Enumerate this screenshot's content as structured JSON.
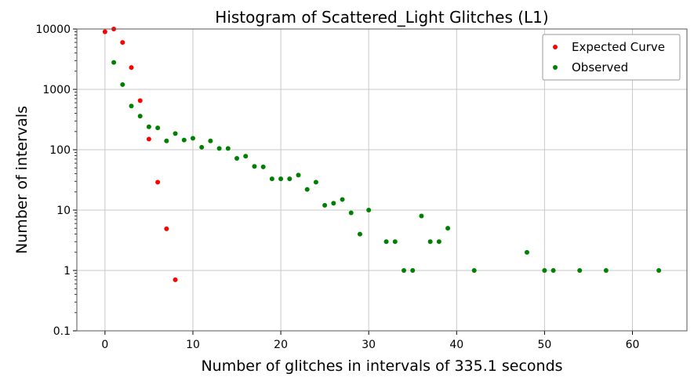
{
  "chart_data": {
    "type": "scatter",
    "title": "Histogram of Scattered_Light Glitches (L1)",
    "xlabel": "Number of glitches in intervals of 335.1 seconds",
    "ylabel": "Number of intervals",
    "xlim": [
      -3.2,
      66.2
    ],
    "ylim": [
      0.1,
      10000
    ],
    "yscale": "log",
    "grid": true,
    "legend_position": "top-right",
    "x_ticks": [
      0,
      10,
      20,
      30,
      40,
      50,
      60
    ],
    "x_tick_labels": [
      "0",
      "10",
      "20",
      "30",
      "40",
      "50",
      "60"
    ],
    "y_ticks": [
      0.1,
      1,
      10,
      100,
      1000,
      10000
    ],
    "y_tick_labels": [
      "0.1",
      "1",
      "10",
      "100",
      "1000",
      "10000"
    ],
    "series": [
      {
        "name": "Expected Curve",
        "color": "#ff0000",
        "x": [
          0,
          1,
          2,
          3,
          4,
          5,
          6,
          7,
          8
        ],
        "y": [
          9000,
          10000,
          6000,
          2300,
          650,
          150,
          29,
          4.9,
          0.7
        ]
      },
      {
        "name": "Observed",
        "color": "#008000",
        "x": [
          1,
          2,
          3,
          4,
          5,
          6,
          7,
          8,
          9,
          10,
          11,
          12,
          13,
          14,
          15,
          16,
          17,
          18,
          19,
          20,
          21,
          22,
          23,
          24,
          25,
          26,
          27,
          28,
          29,
          30,
          32,
          33,
          34,
          35,
          36,
          37,
          38,
          39,
          42,
          48,
          50,
          51,
          54,
          57,
          63
        ],
        "y": [
          2800,
          1200,
          530,
          360,
          240,
          230,
          140,
          185,
          145,
          155,
          110,
          140,
          105,
          105,
          72,
          78,
          53,
          52,
          33,
          33,
          33,
          38,
          22,
          29,
          12,
          13,
          15,
          9,
          4,
          10,
          3,
          3,
          1,
          1,
          8,
          3,
          3,
          5,
          1,
          2,
          1,
          1,
          1,
          1,
          1
        ]
      }
    ]
  }
}
